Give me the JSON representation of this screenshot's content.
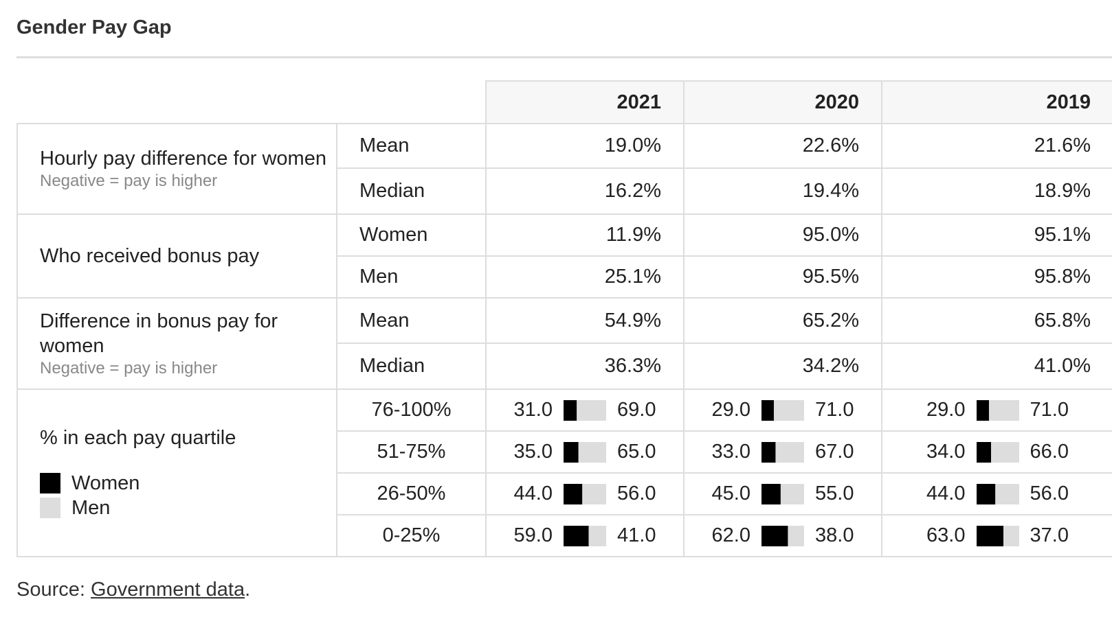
{
  "header": {
    "title": "Gender Pay Gap"
  },
  "table": {
    "years": [
      "2021",
      "2020",
      "2019"
    ],
    "groups": [
      {
        "label": "Hourly pay difference for women",
        "note": "Negative = pay is higher",
        "rows": [
          {
            "label": "Mean",
            "values": [
              "19.0%",
              "22.6%",
              "21.6%"
            ]
          },
          {
            "label": "Median",
            "values": [
              "16.2%",
              "19.4%",
              "18.9%"
            ]
          }
        ]
      },
      {
        "label": "Who received bonus pay",
        "rows": [
          {
            "label": "Women",
            "values": [
              "11.9%",
              "95.0%",
              "95.1%"
            ]
          },
          {
            "label": "Men",
            "values": [
              "25.1%",
              "95.5%",
              "95.8%"
            ]
          }
        ]
      },
      {
        "label": "Difference in bonus pay for women",
        "note": "Negative = pay is higher",
        "rows": [
          {
            "label": "Mean",
            "values": [
              "54.9%",
              "65.2%",
              "65.8%"
            ]
          },
          {
            "label": "Median",
            "values": [
              "36.3%",
              "34.2%",
              "41.0%"
            ]
          }
        ]
      }
    ],
    "quartiles": {
      "label": "% in each pay quartile",
      "legend": [
        "Women",
        "Men"
      ],
      "colors": [
        "#000000",
        "#dddddd"
      ],
      "rows": [
        {
          "label": "76-100%",
          "values": [
            [
              {
                "value": 31,
                "label": "31.0"
              },
              {
                "value": 69,
                "label": "69.0"
              }
            ],
            [
              {
                "value": 29,
                "label": "29.0"
              },
              {
                "value": 71,
                "label": "71.0"
              }
            ],
            [
              {
                "value": 29,
                "label": "29.0"
              },
              {
                "value": 71,
                "label": "71.0"
              }
            ]
          ]
        },
        {
          "label": "51-75%",
          "values": [
            [
              {
                "value": 35,
                "label": "35.0"
              },
              {
                "value": 65,
                "label": "65.0"
              }
            ],
            [
              {
                "value": 33,
                "label": "33.0"
              },
              {
                "value": 67,
                "label": "67.0"
              }
            ],
            [
              {
                "value": 34,
                "label": "34.0"
              },
              {
                "value": 66,
                "label": "66.0"
              }
            ]
          ]
        },
        {
          "label": "26-50%",
          "values": [
            [
              {
                "value": 44,
                "label": "44.0"
              },
              {
                "value": 56,
                "label": "56.0"
              }
            ],
            [
              {
                "value": 45,
                "label": "45.0"
              },
              {
                "value": 55,
                "label": "55.0"
              }
            ],
            [
              {
                "value": 44,
                "label": "44.0"
              },
              {
                "value": 56,
                "label": "56.0"
              }
            ]
          ]
        },
        {
          "label": "0-25%",
          "values": [
            [
              {
                "value": 59,
                "label": "59.0"
              },
              {
                "value": 41,
                "label": "41.0"
              }
            ],
            [
              {
                "value": 62,
                "label": "62.0"
              },
              {
                "value": 38,
                "label": "38.0"
              }
            ],
            [
              {
                "value": 63,
                "label": "63.0"
              },
              {
                "value": 37,
                "label": "37.0"
              }
            ]
          ]
        }
      ]
    }
  },
  "footer": {
    "prefix": "Source:",
    "link": "Government data",
    "suffix": "."
  }
}
